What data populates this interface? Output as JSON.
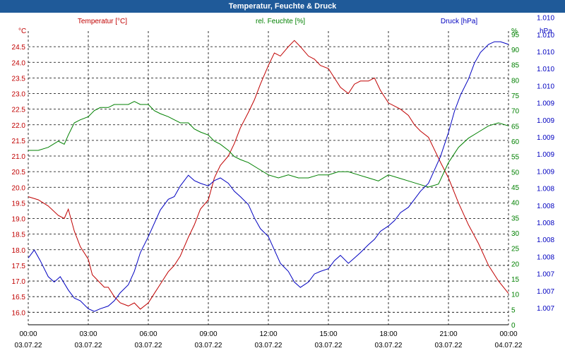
{
  "window": {
    "title": "Temperatur, Feuchte & Druck"
  },
  "chart_data": {
    "type": "line",
    "title": "Temperatur, Feuchte & Druck",
    "x_ticks": [
      {
        "time": "00:00",
        "date": "03.07.22"
      },
      {
        "time": "03:00",
        "date": "03.07.22"
      },
      {
        "time": "06:00",
        "date": "03.07.22"
      },
      {
        "time": "09:00",
        "date": "03.07.22"
      },
      {
        "time": "12:00",
        "date": "03.07.22"
      },
      {
        "time": "15:00",
        "date": "03.07.22"
      },
      {
        "time": "18:00",
        "date": "03.07.22"
      },
      {
        "time": "21:00",
        "date": "03.07.22"
      },
      {
        "time": "00:00",
        "date": "04.07.22"
      }
    ],
    "x_range_hours": [
      0,
      24
    ],
    "grid": true,
    "axes": {
      "temperature": {
        "label": "Temperatur [°C]",
        "unit": "°C",
        "side": "left",
        "range": [
          15.6,
          25.0
        ],
        "ticks": [
          "16.0",
          "16.5",
          "17.0",
          "17.5",
          "18.0",
          "18.5",
          "19.0",
          "19.5",
          "20.0",
          "20.5",
          "21.0",
          "21.5",
          "22.0",
          "22.5",
          "23.0",
          "23.5",
          "24.0",
          "24.5"
        ],
        "color": "#c00000"
      },
      "humidity": {
        "label": "rel. Feuchte [%]",
        "unit": "%",
        "side": "right",
        "range": [
          0,
          96
        ],
        "ticks": [
          "0",
          "5",
          "10",
          "15",
          "20",
          "25",
          "30",
          "35",
          "40",
          "45",
          "50",
          "55",
          "60",
          "65",
          "70",
          "75",
          "80",
          "85",
          "90",
          "95"
        ],
        "color": "#008000"
      },
      "pressure": {
        "label": "Druck [hPa]",
        "unit": "hPa",
        "side": "right",
        "ticks": [
          "1.007",
          "1.007",
          "1.007",
          "1.008",
          "1.008",
          "1.008",
          "1.008",
          "1.008",
          "1.009",
          "1.009",
          "1.009",
          "1.009",
          "1.009",
          "1.010",
          "1.010",
          "1.010",
          "1.010",
          "1.010"
        ],
        "color": "#0000c0"
      }
    },
    "series": [
      {
        "name": "Temperatur [°C]",
        "axis": "temperature",
        "color": "#c00000",
        "x": [
          0,
          0.5,
          1,
          1.5,
          1.8,
          2,
          2.3,
          2.6,
          3,
          3.2,
          3.5,
          3.8,
          4,
          4.3,
          4.6,
          5,
          5.3,
          5.6,
          6,
          6.3,
          6.6,
          7,
          7.3,
          7.6,
          8,
          8.3,
          8.6,
          9,
          9.3,
          9.6,
          10,
          10.3,
          10.6,
          11,
          11.3,
          11.6,
          12,
          12.3,
          12.6,
          13,
          13.3,
          13.6,
          14,
          14.3,
          14.6,
          15,
          15.3,
          15.6,
          16,
          16.3,
          16.6,
          17,
          17.3,
          17.6,
          18,
          18.3,
          18.6,
          19,
          19.3,
          19.6,
          20,
          20.3,
          20.6,
          21,
          21.5,
          22,
          22.5,
          23,
          23.5,
          24
        ],
        "values": [
          19.7,
          19.6,
          19.4,
          19.1,
          19.0,
          19.3,
          18.6,
          18.1,
          17.7,
          17.2,
          17.0,
          16.8,
          16.8,
          16.5,
          16.3,
          16.2,
          16.3,
          16.1,
          16.3,
          16.6,
          16.9,
          17.3,
          17.5,
          17.8,
          18.4,
          18.8,
          19.3,
          19.6,
          20.3,
          20.7,
          21.0,
          21.4,
          21.9,
          22.4,
          22.8,
          23.3,
          23.9,
          24.3,
          24.2,
          24.5,
          24.7,
          24.5,
          24.2,
          24.1,
          23.9,
          23.8,
          23.5,
          23.2,
          23.0,
          23.3,
          23.4,
          23.4,
          23.5,
          23.1,
          22.7,
          22.6,
          22.5,
          22.3,
          22.0,
          21.8,
          21.6,
          21.2,
          20.8,
          20.3,
          19.5,
          18.8,
          18.2,
          17.5,
          17.0,
          16.6
        ]
      },
      {
        "name": "rel. Feuchte [%]",
        "axis": "humidity",
        "color": "#008000",
        "x": [
          0,
          0.5,
          1,
          1.5,
          1.8,
          2,
          2.3,
          2.6,
          3,
          3.3,
          3.6,
          4,
          4.3,
          4.6,
          5,
          5.3,
          5.6,
          6,
          6.3,
          6.6,
          7,
          7.3,
          7.6,
          8,
          8.3,
          8.6,
          9,
          9.3,
          9.6,
          10,
          10.3,
          10.6,
          11,
          11.5,
          12,
          12.5,
          13,
          13.5,
          14,
          14.5,
          15,
          15.5,
          16,
          16.5,
          17,
          17.5,
          18,
          18.5,
          19,
          19.5,
          20,
          20.5,
          21,
          21.5,
          22,
          22.5,
          23,
          23.5,
          24
        ],
        "values": [
          57,
          57,
          58,
          60,
          59,
          62,
          66,
          67,
          68,
          70,
          71,
          71,
          72,
          72,
          72,
          73,
          72,
          72,
          70,
          69,
          68,
          67,
          66,
          66,
          64,
          63,
          62,
          60,
          59,
          57,
          55,
          54,
          53,
          51,
          49,
          48,
          49,
          48,
          48,
          49,
          49,
          50,
          50,
          49,
          48,
          47,
          49,
          48,
          47,
          46,
          45,
          46,
          53,
          58,
          61,
          63,
          65,
          66,
          65
        ]
      },
      {
        "name": "Druck [hPa]",
        "axis": "pressure",
        "color": "#0000c0",
        "x": [
          0,
          0.3,
          0.6,
          1,
          1.3,
          1.6,
          2,
          2.3,
          2.6,
          3,
          3.3,
          3.6,
          4,
          4.3,
          4.6,
          5,
          5.3,
          5.6,
          6,
          6.3,
          6.6,
          7,
          7.3,
          7.6,
          8,
          8.3,
          8.6,
          9,
          9.3,
          9.6,
          10,
          10.3,
          10.6,
          11,
          11.3,
          11.6,
          12,
          12.3,
          12.6,
          13,
          13.3,
          13.6,
          14,
          14.3,
          14.6,
          15,
          15.3,
          15.6,
          16,
          16.3,
          16.6,
          17,
          17.3,
          17.6,
          18,
          18.3,
          18.6,
          19,
          19.3,
          19.6,
          20,
          20.3,
          20.6,
          21,
          21.3,
          21.6,
          22,
          22.3,
          22.6,
          23,
          23.3,
          23.6,
          24
        ],
        "values": [
          0.25,
          0.28,
          0.24,
          0.18,
          0.16,
          0.18,
          0.13,
          0.1,
          0.09,
          0.06,
          0.05,
          0.06,
          0.07,
          0.09,
          0.12,
          0.15,
          0.2,
          0.27,
          0.33,
          0.38,
          0.43,
          0.47,
          0.48,
          0.52,
          0.56,
          0.54,
          0.53,
          0.52,
          0.54,
          0.55,
          0.53,
          0.5,
          0.48,
          0.45,
          0.4,
          0.36,
          0.33,
          0.28,
          0.23,
          0.2,
          0.16,
          0.14,
          0.16,
          0.19,
          0.2,
          0.21,
          0.24,
          0.26,
          0.23,
          0.25,
          0.27,
          0.3,
          0.32,
          0.35,
          0.37,
          0.39,
          0.42,
          0.44,
          0.47,
          0.5,
          0.53,
          0.58,
          0.63,
          0.72,
          0.8,
          0.86,
          0.92,
          0.98,
          1.02,
          1.05,
          1.06,
          1.06,
          1.05
        ]
      }
    ]
  }
}
